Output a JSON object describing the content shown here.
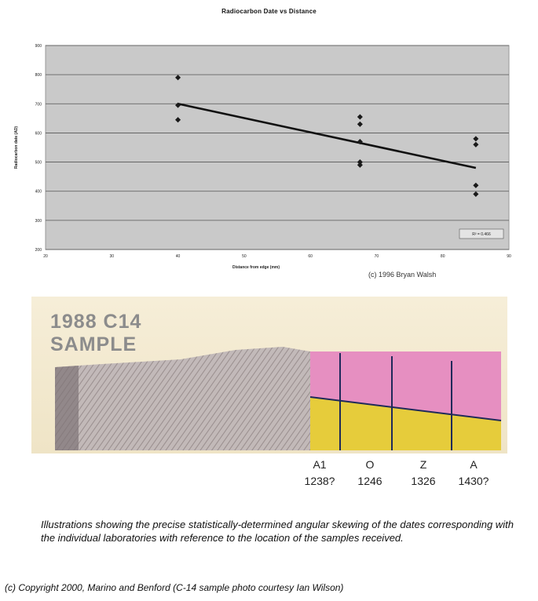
{
  "chart_data": {
    "type": "scatter",
    "title": "Radiocarbon Date vs Distance",
    "xlabel": "Distance from edge (mm)",
    "ylabel": "Radiocarbon date (AD)",
    "x_ticks": [
      "20",
      "30",
      "40",
      "50",
      "60",
      "70",
      "80",
      "90"
    ],
    "y_ticks": [
      "900",
      "800",
      "700",
      "600",
      "500",
      "400",
      "300",
      "200"
    ],
    "xlim": [
      20,
      90
    ],
    "ylim": [
      200,
      900
    ],
    "grid": true,
    "r2_label": "R² = 0.466",
    "points": [
      {
        "x": 40,
        "y": 790
      },
      {
        "x": 40,
        "y": 695
      },
      {
        "x": 40,
        "y": 645
      },
      {
        "x": 67.5,
        "y": 655
      },
      {
        "x": 67.5,
        "y": 630
      },
      {
        "x": 67.5,
        "y": 570
      },
      {
        "x": 67.5,
        "y": 500
      },
      {
        "x": 67.5,
        "y": 490
      },
      {
        "x": 85,
        "y": 580
      },
      {
        "x": 85,
        "y": 560
      },
      {
        "x": 85,
        "y": 420
      },
      {
        "x": 85,
        "y": 390
      }
    ],
    "trendline": [
      {
        "x": 40,
        "y": 700
      },
      {
        "x": 85,
        "y": 480
      }
    ]
  },
  "chart_credit": "(c) 1996 Bryan Walsh",
  "photo": {
    "title_line1": "1988 C14",
    "title_line2": "SAMPLE",
    "colors": {
      "upper": "#e68fc1",
      "lower": "#e6cc3b",
      "cloth": "#b9aeb0",
      "divider": "#1f2a5a"
    }
  },
  "labs": [
    {
      "code": "A1",
      "date": "1238?"
    },
    {
      "code": "O",
      "date": "1246"
    },
    {
      "code": "Z",
      "date": "1326"
    },
    {
      "code": "A",
      "date": "1430?"
    }
  ],
  "caption": "Illustrations showing the precise statistically-determined angular skewing of the dates corresponding with the individual laboratories with reference to the location of the samples received.",
  "copyright": "(c) Copyright 2000, Marino and Benford (C-14 sample photo courtesy Ian Wilson)"
}
